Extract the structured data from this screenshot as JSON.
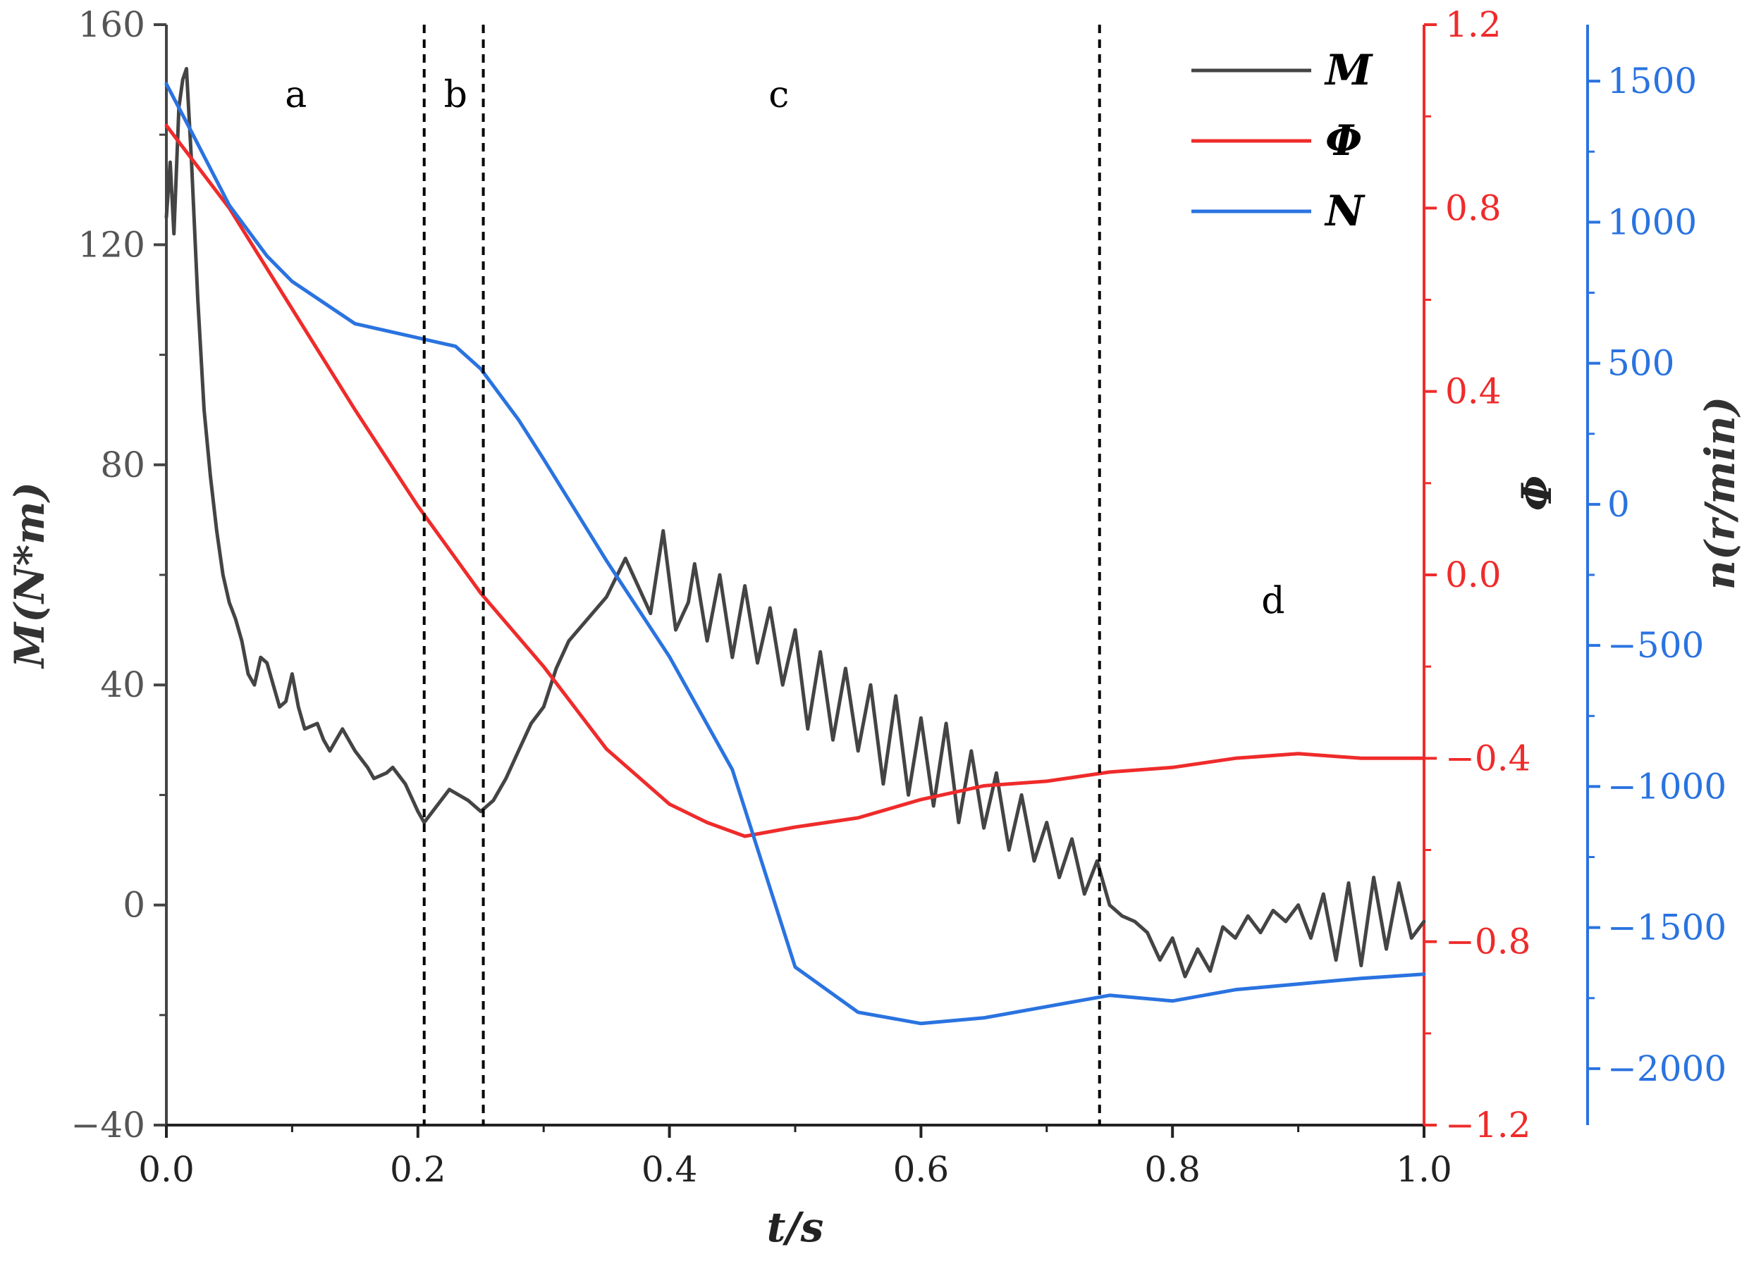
{
  "chart_data": {
    "type": "line",
    "x_ticks": [
      "0.0",
      "0.2",
      "0.4",
      "0.6",
      "0.8",
      "1.0"
    ],
    "xlabel": "t/s",
    "xlim": [
      0,
      1
    ],
    "axes": {
      "M": {
        "label": "M(N*m)",
        "ylim": [
          -40,
          160
        ],
        "ticks": [
          -40,
          0,
          40,
          80,
          120,
          160
        ],
        "tick_labels": [
          "−40",
          "0",
          "40",
          "80",
          "120",
          "160"
        ],
        "color": "#444444"
      },
      "phi": {
        "label": "Φ",
        "ylim": [
          -1.2,
          1.2
        ],
        "ticks": [
          -1.2,
          -0.8,
          -0.4,
          0.0,
          0.4,
          0.8,
          1.2
        ],
        "tick_labels": [
          "−1.2",
          "−0.8",
          "−0.4",
          "0.0",
          "0.4",
          "0.8",
          "1.2"
        ],
        "color": "#ef2b2b"
      },
      "n": {
        "label": "n(r/min)",
        "ylim": [
          -2200,
          1700
        ],
        "ticks": [
          -2000,
          -1500,
          -1000,
          -500,
          0,
          500,
          1000,
          1500
        ],
        "tick_labels": [
          "−2000",
          "−1500",
          "−1000",
          "−500",
          "0",
          "500",
          "1000",
          "1500"
        ],
        "color": "#2a73e0"
      }
    },
    "legend": {
      "position": "top-right",
      "entries": [
        "M",
        "Φ",
        "N"
      ]
    },
    "regions": {
      "boundaries": [
        0.205,
        0.252,
        0.742
      ],
      "labels": [
        {
          "text": "a",
          "x": 0.103,
          "y_M": 145
        },
        {
          "text": "b",
          "x": 0.23,
          "y_M": 145
        },
        {
          "text": "c",
          "x": 0.487,
          "y_M": 145
        },
        {
          "text": "d",
          "x": 0.88,
          "y_M": 53
        }
      ]
    },
    "series": [
      {
        "name": "M",
        "axis": "M",
        "color": "#444444",
        "points": [
          [
            0,
            125
          ],
          [
            0.003,
            135
          ],
          [
            0.006,
            122
          ],
          [
            0.01,
            145
          ],
          [
            0.013,
            150
          ],
          [
            0.016,
            152
          ],
          [
            0.02,
            135
          ],
          [
            0.025,
            110
          ],
          [
            0.03,
            90
          ],
          [
            0.035,
            78
          ],
          [
            0.04,
            68
          ],
          [
            0.045,
            60
          ],
          [
            0.05,
            55
          ],
          [
            0.055,
            52
          ],
          [
            0.06,
            48
          ],
          [
            0.065,
            42
          ],
          [
            0.07,
            40
          ],
          [
            0.075,
            45
          ],
          [
            0.08,
            44
          ],
          [
            0.085,
            40
          ],
          [
            0.09,
            36
          ],
          [
            0.095,
            37
          ],
          [
            0.1,
            42
          ],
          [
            0.105,
            36
          ],
          [
            0.11,
            32
          ],
          [
            0.12,
            33
          ],
          [
            0.125,
            30
          ],
          [
            0.13,
            28
          ],
          [
            0.135,
            30
          ],
          [
            0.14,
            32
          ],
          [
            0.15,
            28
          ],
          [
            0.16,
            25
          ],
          [
            0.165,
            23
          ],
          [
            0.175,
            24
          ],
          [
            0.18,
            25
          ],
          [
            0.19,
            22
          ],
          [
            0.2,
            17
          ],
          [
            0.205,
            15
          ],
          [
            0.215,
            18
          ],
          [
            0.225,
            21
          ],
          [
            0.24,
            19
          ],
          [
            0.25,
            17
          ],
          [
            0.26,
            19
          ],
          [
            0.27,
            23
          ],
          [
            0.28,
            28
          ],
          [
            0.29,
            33
          ],
          [
            0.3,
            36
          ],
          [
            0.31,
            43
          ],
          [
            0.32,
            48
          ],
          [
            0.335,
            52
          ],
          [
            0.35,
            56
          ],
          [
            0.365,
            63
          ],
          [
            0.375,
            58
          ],
          [
            0.385,
            53
          ],
          [
            0.395,
            68
          ],
          [
            0.405,
            50
          ],
          [
            0.415,
            55
          ],
          [
            0.42,
            62
          ],
          [
            0.43,
            48
          ],
          [
            0.44,
            60
          ],
          [
            0.45,
            45
          ],
          [
            0.46,
            58
          ],
          [
            0.47,
            44
          ],
          [
            0.48,
            54
          ],
          [
            0.49,
            40
          ],
          [
            0.5,
            50
          ],
          [
            0.51,
            32
          ],
          [
            0.52,
            46
          ],
          [
            0.53,
            30
          ],
          [
            0.54,
            43
          ],
          [
            0.55,
            28
          ],
          [
            0.56,
            40
          ],
          [
            0.57,
            22
          ],
          [
            0.58,
            38
          ],
          [
            0.59,
            20
          ],
          [
            0.6,
            34
          ],
          [
            0.61,
            18
          ],
          [
            0.62,
            33
          ],
          [
            0.63,
            15
          ],
          [
            0.64,
            28
          ],
          [
            0.65,
            14
          ],
          [
            0.66,
            24
          ],
          [
            0.67,
            10
          ],
          [
            0.68,
            20
          ],
          [
            0.69,
            8
          ],
          [
            0.7,
            15
          ],
          [
            0.71,
            5
          ],
          [
            0.72,
            12
          ],
          [
            0.73,
            2
          ],
          [
            0.74,
            8
          ],
          [
            0.75,
            0
          ],
          [
            0.76,
            -2
          ],
          [
            0.77,
            -3
          ],
          [
            0.78,
            -5
          ],
          [
            0.79,
            -10
          ],
          [
            0.8,
            -6
          ],
          [
            0.81,
            -13
          ],
          [
            0.82,
            -8
          ],
          [
            0.83,
            -12
          ],
          [
            0.84,
            -4
          ],
          [
            0.85,
            -6
          ],
          [
            0.86,
            -2
          ],
          [
            0.87,
            -5
          ],
          [
            0.88,
            -1
          ],
          [
            0.89,
            -3
          ],
          [
            0.9,
            0
          ],
          [
            0.91,
            -6
          ],
          [
            0.92,
            2
          ],
          [
            0.93,
            -10
          ],
          [
            0.94,
            4
          ],
          [
            0.95,
            -11
          ],
          [
            0.96,
            5
          ],
          [
            0.97,
            -8
          ],
          [
            0.98,
            4
          ],
          [
            0.99,
            -6
          ],
          [
            1.0,
            -3
          ]
        ]
      },
      {
        "name": "Φ",
        "axis": "phi",
        "color": "#ef2b2b",
        "points": [
          [
            0,
            0.98
          ],
          [
            0.05,
            0.8
          ],
          [
            0.1,
            0.58
          ],
          [
            0.15,
            0.36
          ],
          [
            0.2,
            0.15
          ],
          [
            0.25,
            -0.04
          ],
          [
            0.3,
            -0.2
          ],
          [
            0.35,
            -0.38
          ],
          [
            0.4,
            -0.5
          ],
          [
            0.43,
            -0.54
          ],
          [
            0.46,
            -0.57
          ],
          [
            0.5,
            -0.55
          ],
          [
            0.55,
            -0.53
          ],
          [
            0.6,
            -0.49
          ],
          [
            0.65,
            -0.46
          ],
          [
            0.7,
            -0.45
          ],
          [
            0.75,
            -0.43
          ],
          [
            0.8,
            -0.42
          ],
          [
            0.85,
            -0.4
          ],
          [
            0.9,
            -0.39
          ],
          [
            0.95,
            -0.4
          ],
          [
            1.0,
            -0.4
          ]
        ]
      },
      {
        "name": "N",
        "axis": "n",
        "color": "#2a73e0",
        "points": [
          [
            0,
            1490
          ],
          [
            0.02,
            1320
          ],
          [
            0.05,
            1060
          ],
          [
            0.08,
            880
          ],
          [
            0.1,
            790
          ],
          [
            0.15,
            640
          ],
          [
            0.2,
            590
          ],
          [
            0.23,
            560
          ],
          [
            0.25,
            480
          ],
          [
            0.28,
            300
          ],
          [
            0.3,
            160
          ],
          [
            0.35,
            -200
          ],
          [
            0.4,
            -540
          ],
          [
            0.45,
            -940
          ],
          [
            0.5,
            -1640
          ],
          [
            0.55,
            -1800
          ],
          [
            0.6,
            -1840
          ],
          [
            0.65,
            -1820
          ],
          [
            0.7,
            -1780
          ],
          [
            0.75,
            -1740
          ],
          [
            0.8,
            -1760
          ],
          [
            0.85,
            -1720
          ],
          [
            0.9,
            -1700
          ],
          [
            0.95,
            -1680
          ],
          [
            1.0,
            -1665
          ]
        ]
      }
    ]
  }
}
